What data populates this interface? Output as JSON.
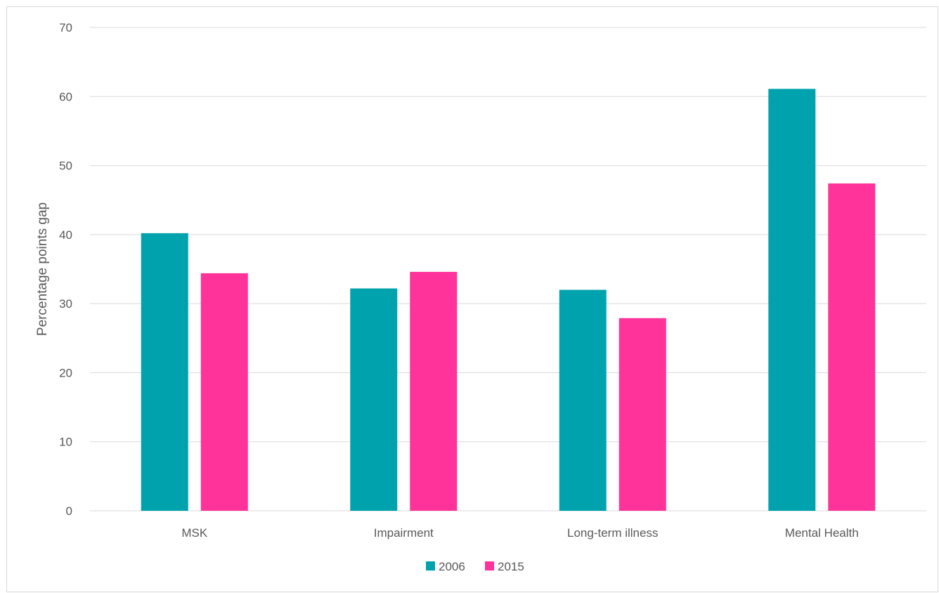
{
  "chart_data": {
    "type": "bar",
    "title": "",
    "xlabel": "",
    "ylabel": "Percentage points gap",
    "categories": [
      "MSK",
      "Impairment",
      "Long-term illness",
      "Mental Health"
    ],
    "series": [
      {
        "name": "2006",
        "values": [
          40.2,
          32.2,
          32.0,
          61.1
        ],
        "color": "#00a3ad"
      },
      {
        "name": "2015",
        "values": [
          34.4,
          34.6,
          27.9,
          47.4
        ],
        "color": "#ff3399"
      }
    ],
    "ylim": [
      0,
      70
    ],
    "yticks": [
      "0",
      "10",
      "20",
      "30",
      "40",
      "50",
      "60",
      "70"
    ],
    "grid": true,
    "legend_position": "bottom"
  }
}
